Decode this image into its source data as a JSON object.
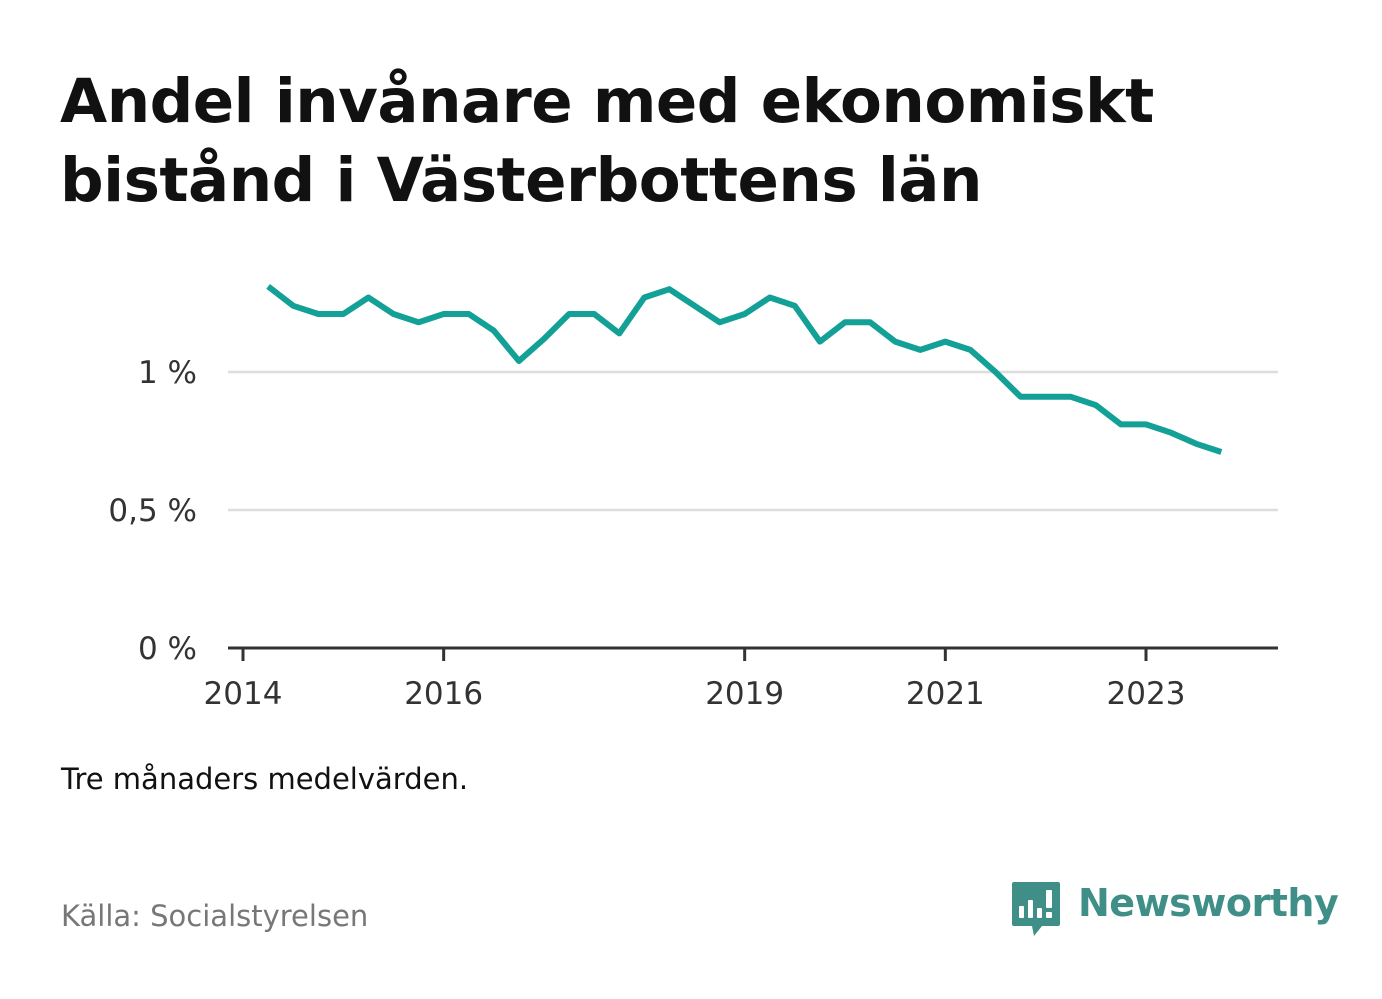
{
  "title_lines": [
    "Andel invånare med ekonomiskt",
    "bistånd i Västerbottens län"
  ],
  "note": "Tre månaders medelvärden.",
  "source": "Källa: Socialstyrelsen",
  "brand": {
    "name": "Newsworthy",
    "icon": "newsworthy-logo-icon",
    "color": "#3f8f88"
  },
  "colors": {
    "line": "#12a097",
    "grid": "#dddddd",
    "axis": "#333333"
  },
  "chart_data": {
    "type": "line",
    "title": "Andel invånare med ekonomiskt bistånd i Västerbottens län",
    "xlabel": "",
    "ylabel": "",
    "x_ticks": [
      "2014",
      "2016",
      "2019",
      "2021",
      "2023"
    ],
    "y_ticks": [
      {
        "value": 0,
        "label": "0 %"
      },
      {
        "value": 0.5,
        "label": "0,5 %"
      },
      {
        "value": 1,
        "label": "1 %"
      }
    ],
    "ylim": [
      0,
      1.4
    ],
    "xlim": [
      "2014-01",
      "2024-04"
    ],
    "grid": true,
    "series": [
      {
        "x": [
          "2014-04",
          "2014-07",
          "2014-10",
          "2015-01",
          "2015-04",
          "2015-07",
          "2015-10",
          "2016-01",
          "2016-04",
          "2016-07",
          "2016-10",
          "2017-01",
          "2017-04",
          "2017-07",
          "2017-10",
          "2018-01",
          "2018-04",
          "2018-07",
          "2018-10",
          "2019-01",
          "2019-04",
          "2019-07",
          "2019-10",
          "2020-01",
          "2020-04",
          "2020-07",
          "2020-10",
          "2021-01",
          "2021-04",
          "2021-07",
          "2021-10",
          "2022-01",
          "2022-04",
          "2022-07",
          "2022-10",
          "2023-01",
          "2023-04",
          "2023-07",
          "2023-10"
        ],
        "values": [
          1.31,
          1.24,
          1.21,
          1.21,
          1.27,
          1.21,
          1.18,
          1.21,
          1.21,
          1.15,
          1.04,
          1.12,
          1.21,
          1.21,
          1.14,
          1.27,
          1.3,
          1.24,
          1.18,
          1.21,
          1.27,
          1.24,
          1.11,
          1.18,
          1.18,
          1.11,
          1.08,
          1.11,
          1.08,
          1.0,
          0.91,
          0.91,
          0.91,
          0.88,
          0.81,
          0.81,
          0.78,
          0.74,
          0.71
        ]
      }
    ]
  }
}
